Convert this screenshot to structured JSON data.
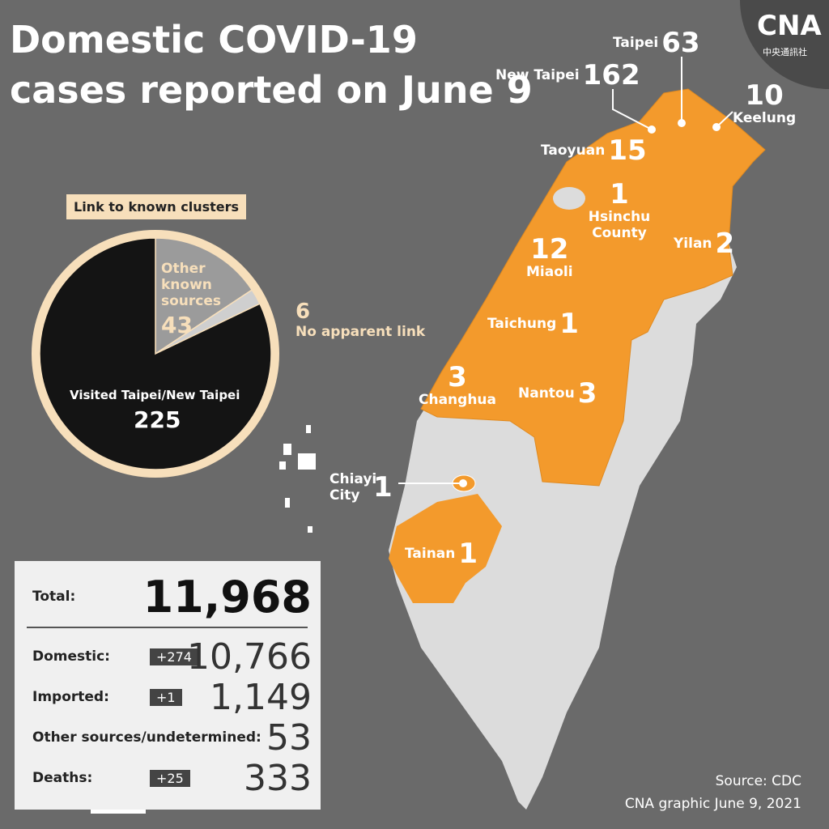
{
  "title": "Domestic COVID-19 cases reported on June 9",
  "logo": {
    "name": "CNA",
    "subtitle": "中央通訊社"
  },
  "chart_data": {
    "type": "pie",
    "title": "Link to known clusters",
    "categories": [
      "Other known sources",
      "No apparent link",
      "Visited Taipei/New Taipei"
    ],
    "values": [
      43,
      6,
      225
    ],
    "colors": [
      "#9b9b9b",
      "#cfcfcf",
      "#141414"
    ]
  },
  "map": {
    "regions": [
      {
        "name": "New Taipei",
        "cases": "162"
      },
      {
        "name": "Taipei",
        "cases": "63"
      },
      {
        "name": "Keelung",
        "cases": "10"
      },
      {
        "name": "Taoyuan",
        "cases": "15"
      },
      {
        "name": "Hsinchu County",
        "cases": "1"
      },
      {
        "name": "Yilan",
        "cases": "2"
      },
      {
        "name": "Miaoli",
        "cases": "12"
      },
      {
        "name": "Taichung",
        "cases": "1"
      },
      {
        "name": "Changhua",
        "cases": "3"
      },
      {
        "name": "Nantou",
        "cases": "3"
      },
      {
        "name": "Chiayi City",
        "cases": "1"
      },
      {
        "name": "Tainan",
        "cases": "1"
      }
    ]
  },
  "stats": {
    "rows": [
      {
        "label": "Total:",
        "value": "11,968"
      },
      {
        "label": "Domestic:",
        "change": "+274",
        "value": "10,766"
      },
      {
        "label": "Imported:",
        "change": "+1",
        "value": "1,149"
      },
      {
        "label": "Other sources/undetermined:",
        "value": "53"
      },
      {
        "label": "Deaths:",
        "change": "+25",
        "value": "333"
      }
    ]
  },
  "source": {
    "line1": "Source: CDC",
    "line2": "CNA graphic June 9, 2021"
  }
}
